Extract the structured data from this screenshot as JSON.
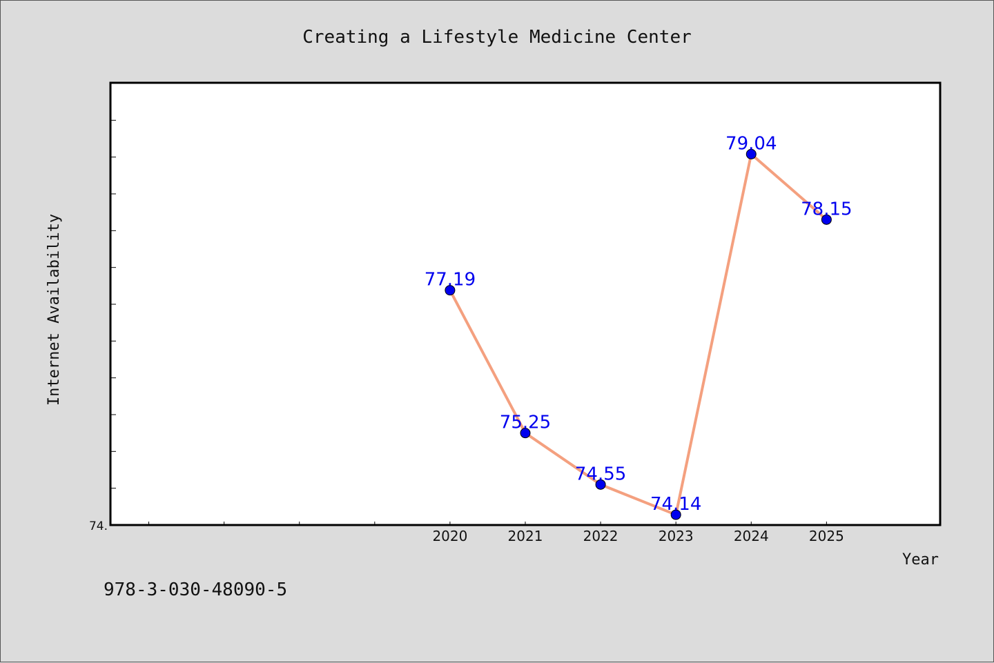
{
  "chart_data": {
    "type": "line",
    "title": "Creating a Lifestyle Medicine Center",
    "xlabel": "Year",
    "ylabel": "Internet Availability",
    "x_ticks": [
      "2020",
      "2021",
      "2022",
      "2023",
      "2024",
      "2025"
    ],
    "x_range": [
      2015.5,
      2026.5
    ],
    "y_range": [
      74.0,
      80.0
    ],
    "y_tick_label": "74.",
    "series": [
      {
        "x": [
          2020,
          2021,
          2022,
          2023,
          2024,
          2025
        ],
        "values": [
          77.19,
          75.25,
          74.55,
          74.14,
          79.04,
          78.15
        ],
        "labels": [
          "77.19",
          "75.25",
          "74.55",
          "74.14",
          "79.04",
          "78.15"
        ]
      }
    ],
    "grid": false,
    "legend": "none"
  },
  "footer": {
    "text": "978-3-030-48090-5"
  },
  "colors": {
    "line": "#f4a07f",
    "marker": "#0000ee",
    "data_label": "#0000ee",
    "plot_bg": "#ffffff",
    "page_bg": "#dcdcdc"
  }
}
